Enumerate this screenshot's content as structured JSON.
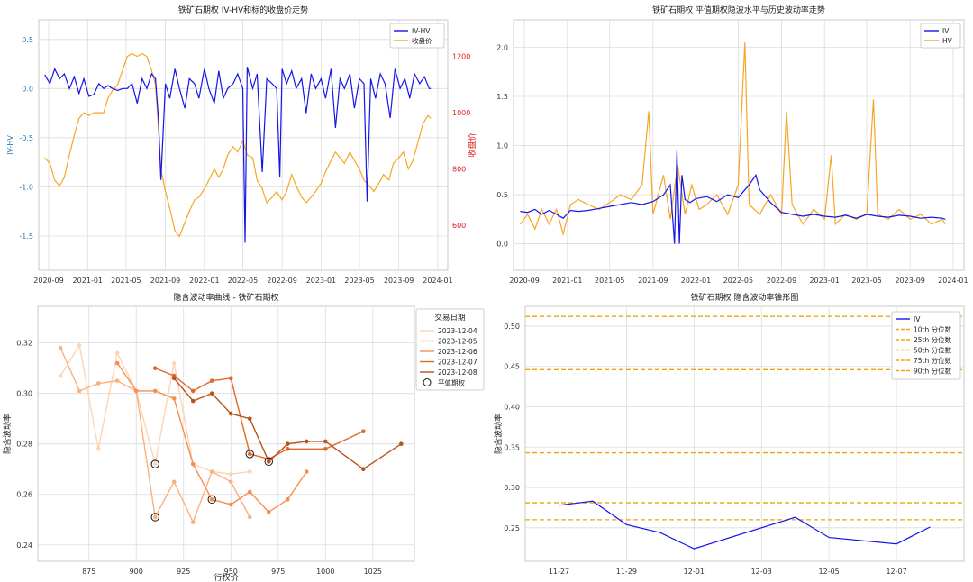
{
  "colors": {
    "iv": "#1515e6",
    "hv": "#f5a623",
    "price": "#f5a623",
    "pct": "#f0a30a",
    "grid": "#dcdcdc",
    "frame": "#c8c8c8",
    "red": "#e02020",
    "blue_axis": "#1f77b4"
  },
  "chart_data": [
    {
      "id": "iv_hv_price",
      "type": "line",
      "title": "铁矿石期权 IV-HV和标的收盘价走势",
      "ylabel": "IV-HV",
      "y2label": "收盘价",
      "xlim": [
        "2020-08-01",
        "2024-02-01"
      ],
      "ylim": [
        -1.85,
        0.7
      ],
      "y2lim": [
        440,
        1330
      ],
      "xticks": [
        "2020-09",
        "2021-01",
        "2021-05",
        "2021-09",
        "2022-01",
        "2022-05",
        "2022-09",
        "2023-01",
        "2023-05",
        "2023-09",
        "2024-01"
      ],
      "yticks": [
        0.5,
        0.0,
        -0.5,
        -1.0,
        -1.5
      ],
      "y2ticks": [
        1200,
        1000,
        800,
        600
      ],
      "legend": [
        "IV-HV",
        "收盘价"
      ],
      "legend_position": "top-right",
      "series": [
        {
          "name": "IV-HV",
          "axis": "y",
          "color": "#1515e6",
          "x": [
            "2020-08-20",
            "2020-09-05",
            "2020-09-20",
            "2020-10-05",
            "2020-10-20",
            "2020-11-05",
            "2020-11-20",
            "2020-12-05",
            "2020-12-20",
            "2021-01-05",
            "2021-01-20",
            "2021-02-05",
            "2021-02-20",
            "2021-03-05",
            "2021-03-20",
            "2021-04-05",
            "2021-04-20",
            "2021-05-05",
            "2021-05-20",
            "2021-06-05",
            "2021-06-20",
            "2021-07-05",
            "2021-07-20",
            "2021-08-01",
            "2021-08-10",
            "2021-08-18",
            "2021-09-01",
            "2021-09-15",
            "2021-10-01",
            "2021-10-15",
            "2021-11-01",
            "2021-11-15",
            "2021-12-01",
            "2021-12-15",
            "2022-01-01",
            "2022-01-15",
            "2022-02-01",
            "2022-02-15",
            "2022-03-01",
            "2022-03-15",
            "2022-04-01",
            "2022-04-15",
            "2022-05-01",
            "2022-05-08",
            "2022-05-15",
            "2022-06-01",
            "2022-06-15",
            "2022-07-01",
            "2022-07-15",
            "2022-08-01",
            "2022-08-15",
            "2022-08-25",
            "2022-09-01",
            "2022-09-15",
            "2022-10-01",
            "2022-10-15",
            "2022-11-01",
            "2022-11-15",
            "2022-12-01",
            "2022-12-15",
            "2023-01-01",
            "2023-01-15",
            "2023-02-01",
            "2023-02-15",
            "2023-03-01",
            "2023-03-15",
            "2023-04-01",
            "2023-04-15",
            "2023-05-01",
            "2023-05-15",
            "2023-05-25",
            "2023-06-05",
            "2023-06-20",
            "2023-07-05",
            "2023-07-20",
            "2023-08-05",
            "2023-08-20",
            "2023-09-05",
            "2023-09-20",
            "2023-10-05",
            "2023-10-20",
            "2023-11-05",
            "2023-11-20",
            "2023-12-05",
            "2023-12-10"
          ],
          "y": [
            0.14,
            0.05,
            0.2,
            0.1,
            0.15,
            0.0,
            0.12,
            -0.05,
            0.1,
            -0.08,
            -0.06,
            0.05,
            0.0,
            0.03,
            0.0,
            -0.02,
            0.0,
            0.0,
            0.05,
            -0.15,
            0.1,
            0.0,
            0.15,
            0.1,
            -0.3,
            -0.93,
            0.05,
            -0.1,
            0.2,
            0.0,
            -0.2,
            0.1,
            0.05,
            -0.1,
            0.2,
            0.0,
            -0.15,
            0.18,
            -0.1,
            0.0,
            0.05,
            0.15,
            0.0,
            -1.57,
            0.22,
            0.0,
            0.15,
            -0.85,
            0.1,
            0.05,
            0.0,
            -0.9,
            0.2,
            0.05,
            0.18,
            0.0,
            0.1,
            -0.25,
            0.15,
            0.0,
            0.1,
            -0.1,
            0.2,
            -0.4,
            0.1,
            0.0,
            0.15,
            -0.2,
            0.1,
            0.05,
            -1.15,
            0.1,
            -0.1,
            0.15,
            0.05,
            -0.3,
            0.2,
            0.0,
            0.1,
            -0.1,
            0.15,
            0.05,
            0.12,
            0.0,
            0.0
          ]
        },
        {
          "name": "收盘价",
          "axis": "y2",
          "color": "#f5a623",
          "x": [
            "2020-08-20",
            "2020-09-05",
            "2020-09-20",
            "2020-10-05",
            "2020-10-20",
            "2020-11-05",
            "2020-11-20",
            "2020-12-05",
            "2020-12-20",
            "2021-01-05",
            "2021-01-20",
            "2021-02-05",
            "2021-02-20",
            "2021-03-05",
            "2021-03-20",
            "2021-04-05",
            "2021-04-20",
            "2021-05-05",
            "2021-05-20",
            "2021-06-05",
            "2021-06-20",
            "2021-07-05",
            "2021-07-20",
            "2021-08-01",
            "2021-08-10",
            "2021-08-18",
            "2021-09-01",
            "2021-09-15",
            "2021-10-01",
            "2021-10-15",
            "2021-11-01",
            "2021-11-15",
            "2021-12-01",
            "2021-12-15",
            "2022-01-01",
            "2022-01-15",
            "2022-02-01",
            "2022-02-15",
            "2022-03-01",
            "2022-03-15",
            "2022-04-01",
            "2022-04-15",
            "2022-05-01",
            "2022-05-15",
            "2022-06-01",
            "2022-06-15",
            "2022-07-01",
            "2022-07-15",
            "2022-08-01",
            "2022-08-15",
            "2022-09-01",
            "2022-09-15",
            "2022-10-01",
            "2022-10-15",
            "2022-11-01",
            "2022-11-15",
            "2022-12-01",
            "2022-12-15",
            "2023-01-01",
            "2023-01-15",
            "2023-02-01",
            "2023-02-15",
            "2023-03-01",
            "2023-03-15",
            "2023-04-01",
            "2023-04-15",
            "2023-05-01",
            "2023-05-15",
            "2023-06-01",
            "2023-06-15",
            "2023-07-01",
            "2023-07-15",
            "2023-08-01",
            "2023-08-15",
            "2023-09-01",
            "2023-09-15",
            "2023-10-01",
            "2023-10-15",
            "2023-11-01",
            "2023-11-15",
            "2023-12-01",
            "2023-12-10"
          ],
          "y": [
            840,
            820,
            760,
            740,
            770,
            850,
            920,
            980,
            1000,
            990,
            1000,
            1000,
            1000,
            1050,
            1080,
            1100,
            1150,
            1200,
            1210,
            1200,
            1210,
            1200,
            1150,
            1100,
            950,
            800,
            720,
            660,
            580,
            560,
            610,
            650,
            690,
            700,
            730,
            760,
            800,
            770,
            800,
            850,
            880,
            860,
            900,
            850,
            840,
            760,
            730,
            680,
            700,
            720,
            690,
            720,
            780,
            740,
            700,
            680,
            700,
            720,
            750,
            790,
            830,
            860,
            840,
            820,
            860,
            830,
            800,
            760,
            740,
            720,
            750,
            780,
            760,
            820,
            840,
            860,
            800,
            830,
            900,
            960,
            990,
            980
          ]
        }
      ]
    },
    {
      "id": "iv_hv_level",
      "type": "line",
      "title": "铁矿石期权 平值期权隐波水平与历史波动率走势",
      "xlim": [
        "2020-08-01",
        "2024-02-01"
      ],
      "ylim": [
        -0.27,
        2.28
      ],
      "xticks": [
        "2020-09",
        "2021-01",
        "2021-05",
        "2021-09",
        "2022-01",
        "2022-05",
        "2022-09",
        "2023-01",
        "2023-05",
        "2023-09",
        "2024-01"
      ],
      "yticks": [
        2.0,
        1.5,
        1.0,
        0.5,
        0.0
      ],
      "legend": [
        "IV",
        "HV"
      ],
      "legend_position": "top-right",
      "series": [
        {
          "name": "IV",
          "color": "#1515e6",
          "x": [
            "2020-08-20",
            "2020-09-10",
            "2020-10-01",
            "2020-10-20",
            "2020-11-10",
            "2020-12-01",
            "2020-12-20",
            "2021-01-10",
            "2021-02-01",
            "2021-03-01",
            "2021-04-01",
            "2021-05-01",
            "2021-06-01",
            "2021-07-01",
            "2021-08-01",
            "2021-09-01",
            "2021-10-01",
            "2021-10-20",
            "2021-11-01",
            "2021-11-08",
            "2021-11-15",
            "2021-11-22",
            "2021-12-01",
            "2021-12-15",
            "2022-01-01",
            "2022-02-01",
            "2022-03-01",
            "2022-04-01",
            "2022-05-01",
            "2022-06-01",
            "2022-06-20",
            "2022-07-01",
            "2022-08-01",
            "2022-09-01",
            "2022-10-01",
            "2022-11-01",
            "2022-12-01",
            "2023-01-01",
            "2023-02-01",
            "2023-03-01",
            "2023-04-01",
            "2023-05-01",
            "2023-06-01",
            "2023-07-01",
            "2023-08-01",
            "2023-09-01",
            "2023-10-01",
            "2023-11-01",
            "2023-12-01",
            "2023-12-10"
          ],
          "y": [
            0.33,
            0.32,
            0.35,
            0.3,
            0.34,
            0.3,
            0.26,
            0.34,
            0.33,
            0.34,
            0.36,
            0.38,
            0.4,
            0.42,
            0.4,
            0.43,
            0.5,
            0.6,
            0.0,
            0.95,
            0.0,
            0.7,
            0.45,
            0.42,
            0.46,
            0.48,
            0.43,
            0.5,
            0.47,
            0.6,
            0.7,
            0.55,
            0.42,
            0.32,
            0.3,
            0.28,
            0.3,
            0.28,
            0.27,
            0.29,
            0.26,
            0.3,
            0.28,
            0.27,
            0.29,
            0.28,
            0.26,
            0.27,
            0.26,
            0.25
          ]
        },
        {
          "name": "HV",
          "color": "#f5a623",
          "x": [
            "2020-08-20",
            "2020-09-10",
            "2020-10-01",
            "2020-10-20",
            "2020-11-10",
            "2020-12-01",
            "2020-12-20",
            "2021-01-10",
            "2021-02-01",
            "2021-03-01",
            "2021-04-01",
            "2021-05-01",
            "2021-06-01",
            "2021-07-01",
            "2021-08-01",
            "2021-08-20",
            "2021-09-01",
            "2021-10-01",
            "2021-10-20",
            "2021-11-10",
            "2021-12-01",
            "2021-12-20",
            "2022-01-10",
            "2022-02-01",
            "2022-03-01",
            "2022-04-01",
            "2022-05-01",
            "2022-05-20",
            "2022-06-01",
            "2022-07-01",
            "2022-08-01",
            "2022-09-01",
            "2022-09-15",
            "2022-10-01",
            "2022-11-01",
            "2022-12-01",
            "2023-01-01",
            "2023-01-20",
            "2023-02-01",
            "2023-03-01",
            "2023-04-01",
            "2023-05-01",
            "2023-05-20",
            "2023-06-01",
            "2023-07-01",
            "2023-08-01",
            "2023-09-01",
            "2023-10-01",
            "2023-11-01",
            "2023-12-01",
            "2023-12-10"
          ],
          "y": [
            0.2,
            0.3,
            0.15,
            0.35,
            0.2,
            0.35,
            0.1,
            0.4,
            0.45,
            0.4,
            0.35,
            0.42,
            0.5,
            0.45,
            0.6,
            1.35,
            0.3,
            0.7,
            0.25,
            0.8,
            0.3,
            0.6,
            0.35,
            0.4,
            0.5,
            0.3,
            0.6,
            2.05,
            0.4,
            0.3,
            0.5,
            0.3,
            1.35,
            0.4,
            0.2,
            0.35,
            0.25,
            0.9,
            0.2,
            0.3,
            0.25,
            0.3,
            1.47,
            0.3,
            0.25,
            0.35,
            0.25,
            0.3,
            0.2,
            0.25,
            0.2
          ]
        }
      ]
    },
    {
      "id": "smile",
      "type": "line",
      "title": "隐含波动率曲线 - 铁矿石期权",
      "xlabel": "行权价",
      "ylabel": "隐含波动率",
      "xlim": [
        848,
        1047
      ],
      "ylim": [
        0.2335,
        0.3345
      ],
      "xticks": [
        875,
        900,
        925,
        950,
        975,
        1000,
        1025
      ],
      "yticks": [
        0.32,
        0.3,
        0.28,
        0.26,
        0.24
      ],
      "legend_title": "交易日期",
      "legend": [
        "2023-12-04",
        "2023-12-05",
        "2023-12-06",
        "2023-12-07",
        "2023-12-08",
        "平值期权"
      ],
      "legend_position": "top-right",
      "series": [
        {
          "name": "2023-12-04",
          "color": "#fcd5b5",
          "x": [
            860,
            870,
            880,
            890,
            900,
            910,
            920,
            930,
            940,
            950,
            960
          ],
          "y": [
            0.307,
            0.319,
            0.278,
            0.316,
            0.301,
            0.272,
            0.312,
            0.272,
            0.269,
            0.268,
            0.269
          ]
        },
        {
          "name": "2023-12-05",
          "color": "#fbb07e",
          "x": [
            860,
            870,
            880,
            890,
            900,
            910,
            920,
            930,
            940,
            950,
            960
          ],
          "y": [
            0.318,
            0.301,
            0.304,
            0.305,
            0.301,
            0.251,
            0.265,
            0.249,
            0.269,
            0.265,
            0.251
          ]
        },
        {
          "name": "2023-12-06",
          "color": "#f68e4f",
          "x": [
            890,
            900,
            910,
            920,
            930,
            940,
            950,
            960,
            970,
            980,
            990
          ],
          "y": [
            0.312,
            0.301,
            0.301,
            0.298,
            0.272,
            0.258,
            0.256,
            0.261,
            0.253,
            0.258,
            0.269
          ]
        },
        {
          "name": "2023-12-07",
          "color": "#e0692a",
          "x": [
            910,
            920,
            930,
            940,
            950,
            960,
            970,
            980,
            1000,
            1020
          ],
          "y": [
            0.31,
            0.307,
            0.301,
            0.305,
            0.306,
            0.276,
            0.274,
            0.278,
            0.278,
            0.285
          ]
        },
        {
          "name": "2023-12-08",
          "color": "#b8531c",
          "x": [
            920,
            930,
            940,
            950,
            960,
            970,
            980,
            990,
            1000,
            1020,
            1040
          ],
          "y": [
            0.306,
            0.297,
            0.3,
            0.292,
            0.29,
            0.273,
            0.28,
            0.281,
            0.281,
            0.27,
            0.28
          ]
        }
      ],
      "atm": [
        {
          "x": 910,
          "y": 0.272
        },
        {
          "x": 910,
          "y": 0.251
        },
        {
          "x": 940,
          "y": 0.258
        },
        {
          "x": 960,
          "y": 0.276
        },
        {
          "x": 970,
          "y": 0.273
        }
      ]
    },
    {
      "id": "cone",
      "type": "line",
      "title": "铁矿石期权 隐含波动率锥形图",
      "ylabel": "隐含波动率",
      "xlim": [
        "11-26",
        "12-09"
      ],
      "ylim": [
        0.2085,
        0.5245
      ],
      "xticks": [
        "11-27",
        "11-29",
        "12-01",
        "12-03",
        "12-05",
        "12-07"
      ],
      "yticks": [
        0.5,
        0.45,
        0.4,
        0.35,
        0.3,
        0.25
      ],
      "legend": [
        "IV",
        "10th 分位数",
        "25th 分位数",
        "50th 分位数",
        "75th 分位数",
        "90th 分位数"
      ],
      "legend_position": "top-right",
      "percentiles": [
        0.26,
        0.281,
        0.343,
        0.446,
        0.512
      ],
      "series": [
        {
          "name": "IV",
          "color": "#1515e6",
          "x": [
            "11-27",
            "11-28",
            "11-29",
            "11-30",
            "12-01",
            "12-04",
            "12-05",
            "12-07",
            "12-08"
          ],
          "y": [
            0.278,
            0.283,
            0.254,
            0.244,
            0.224,
            0.263,
            0.238,
            0.23,
            0.251
          ]
        }
      ]
    }
  ]
}
